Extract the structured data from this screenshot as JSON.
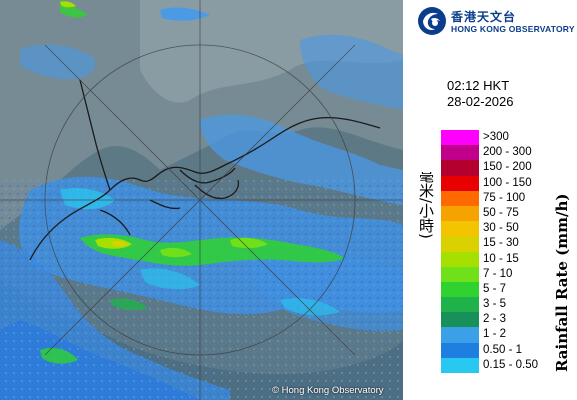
{
  "branding": {
    "name_zh": "香港天文台",
    "name_en": "HONG KONG OBSERVATORY",
    "copyright": "© Hong Kong Observatory"
  },
  "time": "02:12 HKT",
  "date": "28-02-2026",
  "legend": {
    "title_zh": "降雨率(毫米/小時)",
    "title_en": "Rainfall Rate (mm/h)",
    "items": [
      {
        "label": ">300",
        "color": "#ff00ff"
      },
      {
        "label": "200 - 300",
        "color": "#c0008a"
      },
      {
        "label": "150 - 200",
        "color": "#b3002e"
      },
      {
        "label": "100 - 150",
        "color": "#e80000"
      },
      {
        "label": "75 - 100",
        "color": "#ff6a00"
      },
      {
        "label": "50 - 75",
        "color": "#f5a300"
      },
      {
        "label": "30 - 50",
        "color": "#f5c400"
      },
      {
        "label": "15 - 30",
        "color": "#d9d200"
      },
      {
        "label": "10 - 15",
        "color": "#a6e000"
      },
      {
        "label": "7 - 10",
        "color": "#6fe01a"
      },
      {
        "label": "5 - 7",
        "color": "#2fd22f"
      },
      {
        "label": "3 - 5",
        "color": "#1fb24a"
      },
      {
        "label": "2 - 3",
        "color": "#17905a"
      },
      {
        "label": "1 - 2",
        "color": "#3aa0e8"
      },
      {
        "label": "0.50 - 1",
        "color": "#1e7fe0"
      },
      {
        "label": "0.15 - 0.50",
        "color": "#28c8f0"
      }
    ]
  }
}
